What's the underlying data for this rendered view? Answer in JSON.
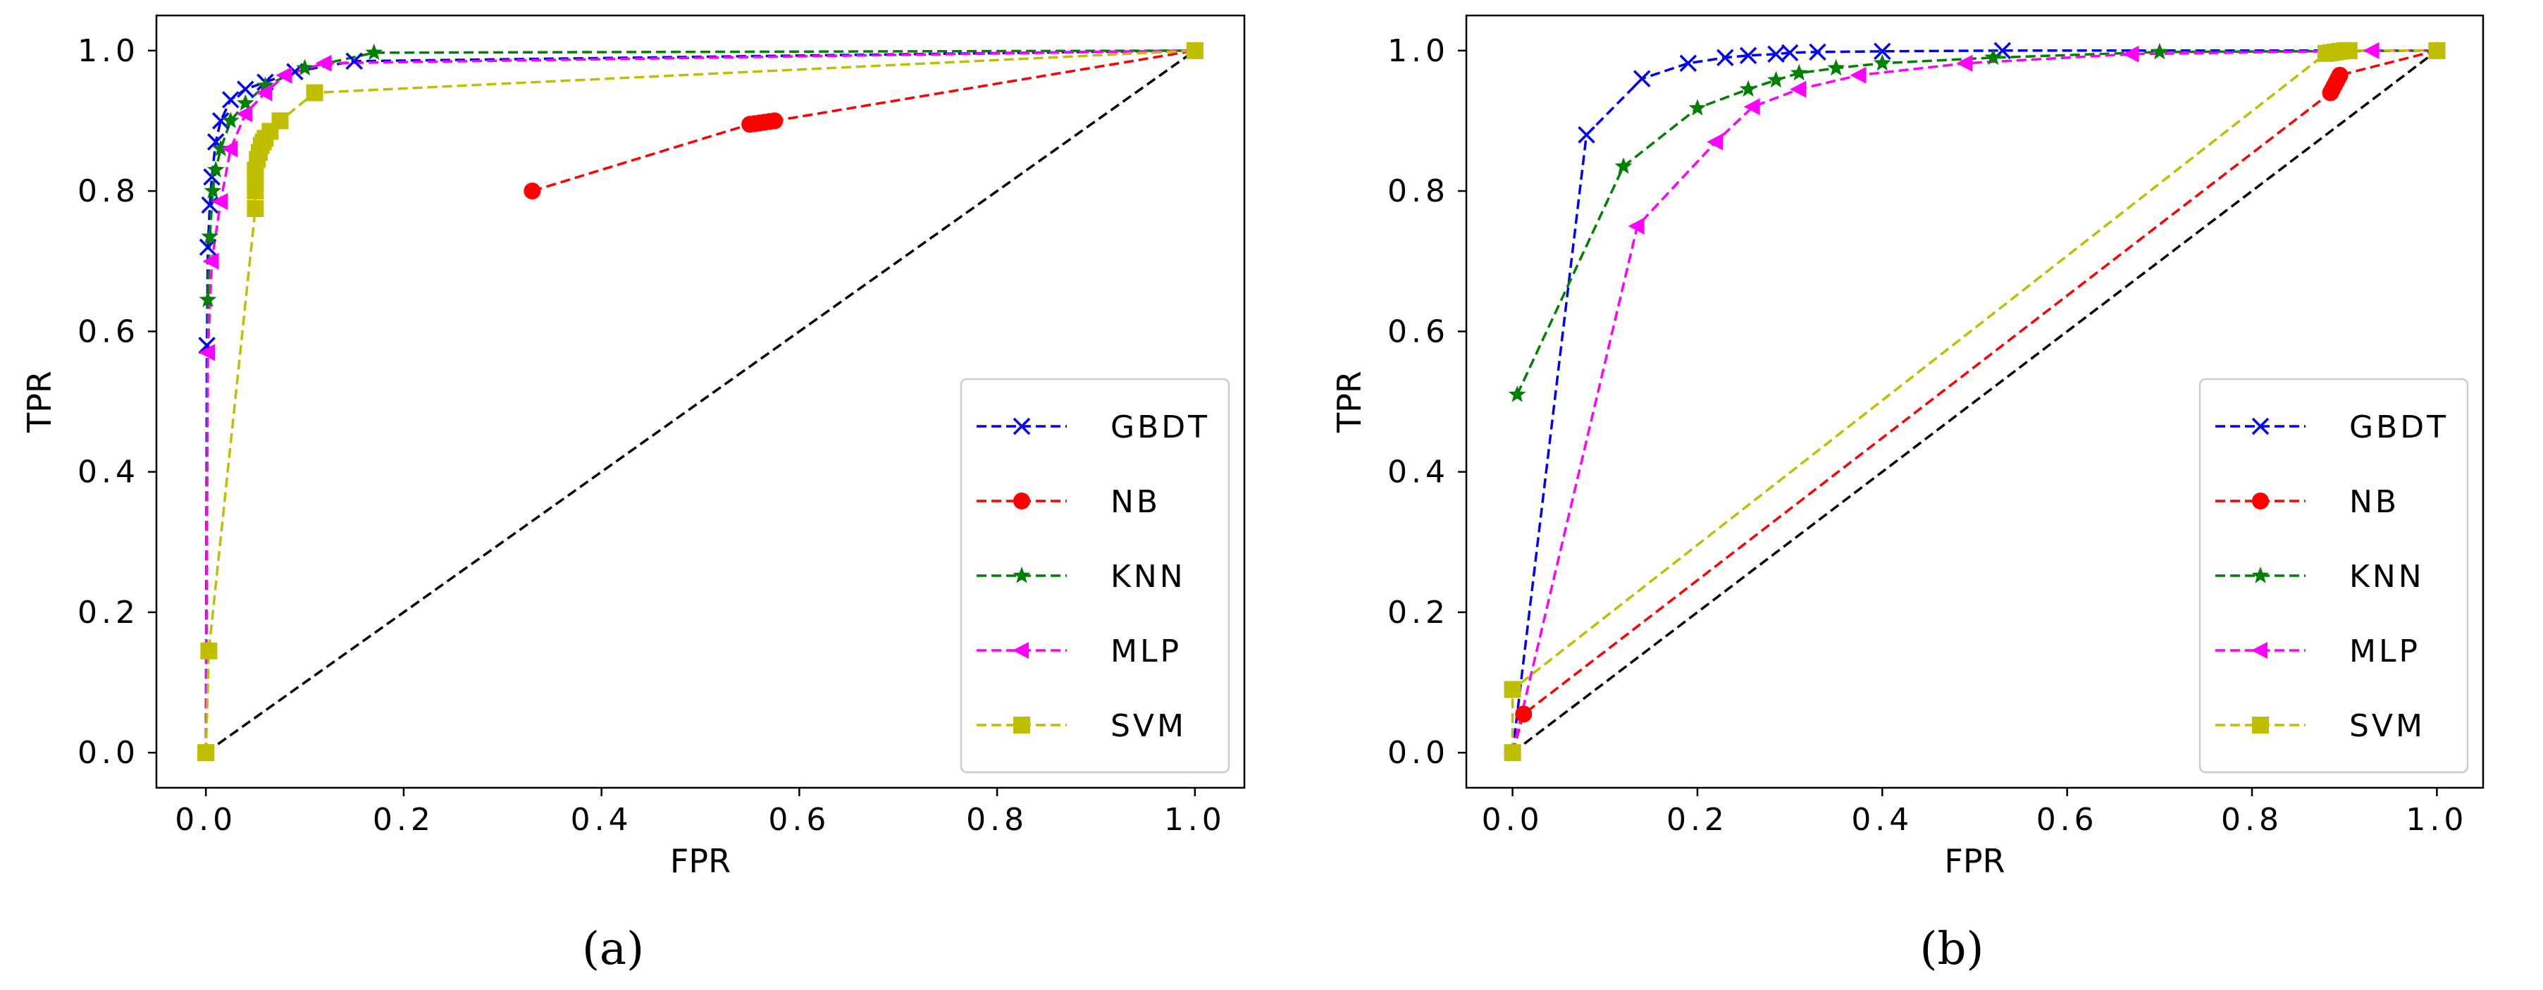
{
  "chart_data": [
    {
      "type": "line",
      "panel_label": "(a)",
      "xlabel": "FPR",
      "ylabel": "TPR",
      "xlim": [
        -0.05,
        1.05
      ],
      "ylim": [
        -0.05,
        1.05
      ],
      "xticks": [
        0.0,
        0.2,
        0.4,
        0.6,
        0.8,
        1.0
      ],
      "xtick_labels": [
        "0.0",
        "0.2",
        "0.4",
        "0.6",
        "0.8",
        "1.0"
      ],
      "yticks": [
        0.0,
        0.2,
        0.4,
        0.6,
        0.8,
        1.0
      ],
      "ytick_labels": [
        "0.0",
        "0.2",
        "0.4",
        "0.6",
        "0.8",
        "1.0"
      ],
      "legend_position": "bottom-right",
      "diagonal": [
        [
          0,
          0
        ],
        [
          1,
          1
        ]
      ],
      "series": [
        {
          "name": "GBDT",
          "color": "#0000ff",
          "marker": "x",
          "x": [
            0.0,
            0.001,
            0.002,
            0.004,
            0.006,
            0.01,
            0.015,
            0.025,
            0.04,
            0.06,
            0.09,
            0.15,
            1.0
          ],
          "y": [
            0.0,
            0.58,
            0.72,
            0.78,
            0.82,
            0.87,
            0.9,
            0.93,
            0.945,
            0.955,
            0.97,
            0.985,
            1.0
          ]
        },
        {
          "name": "NB",
          "color": "#ff0000",
          "marker": "o",
          "x": [
            0.33,
            0.55,
            0.555,
            0.56,
            0.565,
            0.57,
            0.575,
            1.0
          ],
          "y": [
            0.8,
            0.895,
            0.896,
            0.897,
            0.898,
            0.899,
            0.9,
            1.0
          ]
        },
        {
          "name": "KNN",
          "color": "#008000",
          "marker": "*",
          "x": [
            0.0,
            0.002,
            0.004,
            0.007,
            0.01,
            0.015,
            0.025,
            0.04,
            0.06,
            0.1,
            0.17,
            1.0
          ],
          "y": [
            0.0,
            0.645,
            0.735,
            0.8,
            0.83,
            0.86,
            0.9,
            0.925,
            0.95,
            0.975,
            0.997,
            1.0
          ]
        },
        {
          "name": "MLP",
          "color": "#ff00ff",
          "marker": "<",
          "x": [
            0.0,
            0.002,
            0.006,
            0.015,
            0.025,
            0.04,
            0.06,
            0.08,
            0.12,
            1.0
          ],
          "y": [
            0.0,
            0.57,
            0.7,
            0.785,
            0.86,
            0.91,
            0.94,
            0.965,
            0.982,
            1.0
          ]
        },
        {
          "name": "SVM",
          "color": "#bfbf00",
          "marker": "s",
          "x": [
            0.0,
            0.0,
            0.003,
            0.05,
            0.05,
            0.05,
            0.05,
            0.052,
            0.054,
            0.056,
            0.058,
            0.06,
            0.065,
            0.075,
            0.11,
            1.0
          ],
          "y": [
            0.0,
            0.0,
            0.145,
            0.775,
            0.8,
            0.815,
            0.83,
            0.845,
            0.855,
            0.865,
            0.87,
            0.875,
            0.885,
            0.9,
            0.94,
            1.0
          ]
        }
      ]
    },
    {
      "type": "line",
      "panel_label": "(b)",
      "xlabel": "FPR",
      "ylabel": "TPR",
      "xlim": [
        -0.05,
        1.05
      ],
      "ylim": [
        -0.05,
        1.05
      ],
      "xticks": [
        0.0,
        0.2,
        0.4,
        0.6,
        0.8,
        1.0
      ],
      "xtick_labels": [
        "0.0",
        "0.2",
        "0.4",
        "0.6",
        "0.8",
        "1.0"
      ],
      "yticks": [
        0.0,
        0.2,
        0.4,
        0.6,
        0.8,
        1.0
      ],
      "ytick_labels": [
        "0.0",
        "0.2",
        "0.4",
        "0.6",
        "0.8",
        "1.0"
      ],
      "legend_position": "bottom-right",
      "diagonal": [
        [
          0,
          0
        ],
        [
          1,
          1
        ]
      ],
      "series": [
        {
          "name": "GBDT",
          "color": "#0000ff",
          "marker": "x",
          "x": [
            0.0,
            0.08,
            0.14,
            0.19,
            0.23,
            0.255,
            0.285,
            0.3,
            0.33,
            0.4,
            0.53,
            1.0
          ],
          "y": [
            0.0,
            0.88,
            0.96,
            0.982,
            0.99,
            0.993,
            0.995,
            0.997,
            0.998,
            0.999,
            1.0,
            1.0
          ]
        },
        {
          "name": "NB",
          "color": "#ff0000",
          "marker": "o",
          "x": [
            0.0,
            0.012,
            0.885,
            0.887,
            0.889,
            0.891,
            0.893,
            0.895,
            1.0
          ],
          "y": [
            0.0,
            0.055,
            0.94,
            0.945,
            0.95,
            0.955,
            0.96,
            0.965,
            1.0
          ]
        },
        {
          "name": "KNN",
          "color": "#008000",
          "marker": "*",
          "x": [
            0.005,
            0.12,
            0.2,
            0.255,
            0.285,
            0.31,
            0.35,
            0.4,
            0.52,
            0.7,
            1.0
          ],
          "y": [
            0.51,
            0.835,
            0.918,
            0.945,
            0.958,
            0.968,
            0.975,
            0.982,
            0.99,
            0.998,
            1.0
          ]
        },
        {
          "name": "MLP",
          "color": "#ff00ff",
          "marker": "<",
          "x": [
            0.0,
            0.135,
            0.22,
            0.26,
            0.31,
            0.375,
            0.49,
            0.67,
            0.88,
            0.93,
            1.0
          ],
          "y": [
            0.0,
            0.75,
            0.87,
            0.92,
            0.945,
            0.965,
            0.982,
            0.995,
            0.999,
            1.0,
            1.0
          ]
        },
        {
          "name": "SVM",
          "color": "#bfbf00",
          "marker": "s",
          "x": [
            0.0,
            0.0,
            0.88,
            0.885,
            0.89,
            0.895,
            0.9,
            0.905,
            1.0
          ],
          "y": [
            0.0,
            0.09,
            0.996,
            0.997,
            0.998,
            0.999,
            1.0,
            1.0,
            1.0
          ]
        }
      ]
    }
  ]
}
